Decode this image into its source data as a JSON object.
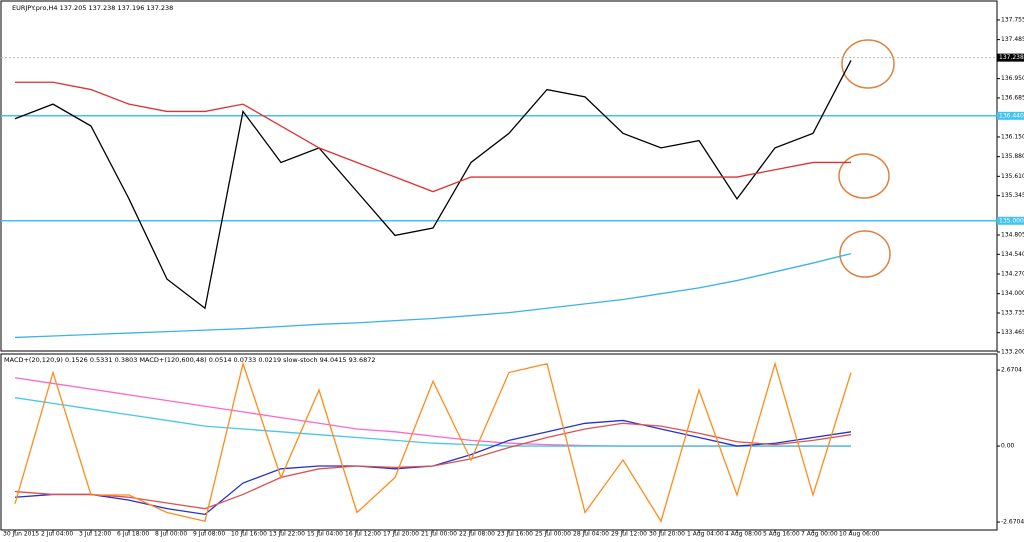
{
  "chart_data": [
    {
      "type": "line",
      "title": "EURJPY.pro,H4 137.205 137.238 137.196 137.238",
      "categories": [
        "30 Jun 2015",
        "2 Jul 04:00",
        "3 Jul 12:00",
        "6 Jul 18:00",
        "8 Jul 00:00",
        "9 Jul 08:00",
        "10 Jul 16:00",
        "13 Jul 22:00",
        "15 Jul 04:00",
        "16 Jul 12:00",
        "17 Jul 20:00",
        "21 Jul 00:00",
        "22 Jul 08:00",
        "23 Jul 16:00",
        "25 Jul 00:00",
        "28 Jul 04:00",
        "29 Jul 12:00",
        "30 Jul 20:00",
        "1 Aug 04:00",
        "4 Aug 08:00",
        "5 Aug 16:00",
        "7 Aug 00:00",
        "10 Aug 06:00"
      ],
      "series": [
        {
          "color": "#000000",
          "values": [
            136.4,
            136.6,
            136.3,
            135.3,
            134.2,
            133.8,
            136.5,
            135.8,
            136.0,
            135.4,
            134.8,
            134.9,
            135.8,
            136.2,
            136.8,
            136.7,
            136.2,
            136.0,
            136.1,
            135.3,
            136.0,
            136.2,
            137.2
          ]
        },
        {
          "color": "#e03030",
          "values": [
            136.9,
            136.9,
            136.8,
            136.6,
            136.5,
            136.5,
            136.6,
            136.3,
            136.0,
            135.8,
            135.6,
            135.4,
            135.6,
            135.6,
            135.6,
            135.6,
            135.6,
            135.6,
            135.6,
            135.6,
            135.7,
            135.8,
            135.8
          ]
        },
        {
          "color": "#3bb3e8",
          "values": [
            133.4,
            133.42,
            133.44,
            133.46,
            133.48,
            133.5,
            133.52,
            133.55,
            133.58,
            133.6,
            133.63,
            133.66,
            133.7,
            133.74,
            133.8,
            133.86,
            133.92,
            134.0,
            134.08,
            134.18,
            134.3,
            134.42,
            134.55
          ]
        }
      ],
      "levels": [
        {
          "value": 136.44,
          "label": "136.440",
          "color": "#3fc3f0"
        },
        {
          "value": 135.0,
          "label": "135.000",
          "color": "#3fc3f0"
        }
      ],
      "last_price": {
        "value": 137.238,
        "label": "137.238"
      },
      "ylim": [
        133.2,
        137.96
      ],
      "yticks": [
        137.755,
        137.485,
        {
          "value": 136.95,
          "label": "136.950"
        },
        136.685,
        {
          "value": 136.15,
          "label": "136.150"
        },
        {
          "value": 135.88,
          "label": "135.880"
        },
        {
          "value": 135.61,
          "label": "135.610"
        },
        135.345,
        134.805,
        {
          "value": 134.54,
          "label": "134.540"
        },
        {
          "value": 134.27,
          "label": "134.270"
        },
        {
          "value": 134.0,
          "label": "134.000"
        },
        133.735,
        133.465,
        {
          "value": 133.2,
          "label": "133.200"
        }
      ]
    },
    {
      "type": "line",
      "title": "MACD+(20,120,9) 0.1526 0.5331 0.3803 MACD+(120,600,48) 0.0514 0.0733 0.0219 slow-stoch 94.0415 93.6872",
      "series": [
        {
          "color": "#ff66cc",
          "values": [
            2.4,
            2.2,
            2.0,
            1.8,
            1.6,
            1.4,
            1.2,
            1.0,
            0.8,
            0.6,
            0.5,
            0.35,
            0.2,
            0.1,
            0.05,
            0.02,
            0.0,
            0.0,
            0.0,
            0.0,
            0.0,
            0.0,
            0.0
          ]
        },
        {
          "color": "#44c8e8",
          "values": [
            1.7,
            1.5,
            1.3,
            1.1,
            0.9,
            0.7,
            0.6,
            0.5,
            0.4,
            0.3,
            0.2,
            0.1,
            0.05,
            0.0,
            0.0,
            0.0,
            0.0,
            0.0,
            0.0,
            0.0,
            0.0,
            0.0,
            0.0
          ]
        },
        {
          "color": "#2233cc",
          "values": [
            -1.8,
            -1.7,
            -1.7,
            -1.9,
            -2.2,
            -2.4,
            -1.3,
            -0.8,
            -0.7,
            -0.7,
            -0.8,
            -0.7,
            -0.3,
            0.2,
            0.5,
            0.8,
            0.9,
            0.6,
            0.3,
            0.0,
            0.1,
            0.3,
            0.5
          ]
        },
        {
          "color": "#e05050",
          "values": [
            -1.6,
            -1.7,
            -1.7,
            -1.8,
            -2.0,
            -2.2,
            -1.7,
            -1.1,
            -0.8,
            -0.7,
            -0.75,
            -0.7,
            -0.45,
            -0.05,
            0.3,
            0.6,
            0.8,
            0.7,
            0.45,
            0.15,
            0.05,
            0.2,
            0.4
          ]
        },
        {
          "color": "#ff8c1a",
          "axis": "y2",
          "values": [
            15,
            90,
            20,
            20,
            10,
            5,
            95,
            30,
            80,
            10,
            30,
            85,
            40,
            90,
            95,
            10,
            40,
            5,
            80,
            20,
            95,
            20,
            90
          ]
        }
      ],
      "ylim": [
        -2.95,
        3.2
      ],
      "yticks": [
        2.6704,
        {
          "value": 0,
          "label": "0.00"
        },
        -2.6704
      ],
      "y2lim": [
        0,
        100
      ]
    }
  ]
}
